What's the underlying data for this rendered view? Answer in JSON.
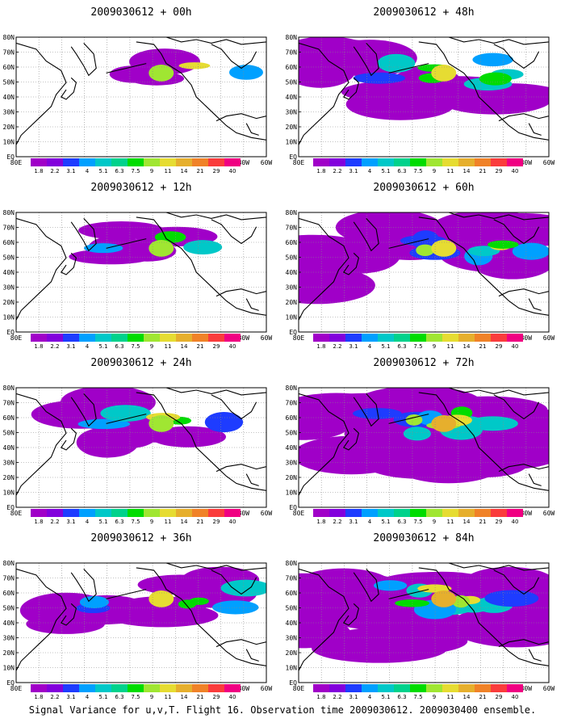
{
  "panels": [
    {
      "title": "2009030612 + 00h",
      "level": 0
    },
    {
      "title": "2009030612 + 48h",
      "level": 4
    },
    {
      "title": "2009030612 + 12h",
      "level": 1
    },
    {
      "title": "2009030612 + 60h",
      "level": 5
    },
    {
      "title": "2009030612 + 24h",
      "level": 2
    },
    {
      "title": "2009030612 + 72h",
      "level": 6
    },
    {
      "title": "2009030612 + 36h",
      "level": 3
    },
    {
      "title": "2009030612 + 84h",
      "level": 7
    }
  ],
  "lat_labels": [
    "80N",
    "70N",
    "60N",
    "50N",
    "40N",
    "30N",
    "20N",
    "10N",
    "EQ"
  ],
  "lon_labels": [
    "80E",
    "100E",
    "120E",
    "140E",
    "160E",
    "180",
    "160W",
    "140W",
    "120W",
    "100W",
    "80W",
    "60W"
  ],
  "colorbar": {
    "labels": [
      "1.8",
      "2.2",
      "3.1",
      "4",
      "5.1",
      "6.3",
      "7.5",
      "9",
      "11",
      "14",
      "21",
      "29",
      "40"
    ],
    "colors": [
      "#a000c8",
      "#8200dc",
      "#1e3cff",
      "#00a0ff",
      "#00c8c8",
      "#00d28c",
      "#00dc00",
      "#a0e632",
      "#e6dc32",
      "#e6af2d",
      "#f08228",
      "#fa3c3c",
      "#f00082"
    ]
  },
  "footer": "Signal Variance for u,v,T. Flight 16. Observation time 2009030612. 2009030400 ensemble."
}
